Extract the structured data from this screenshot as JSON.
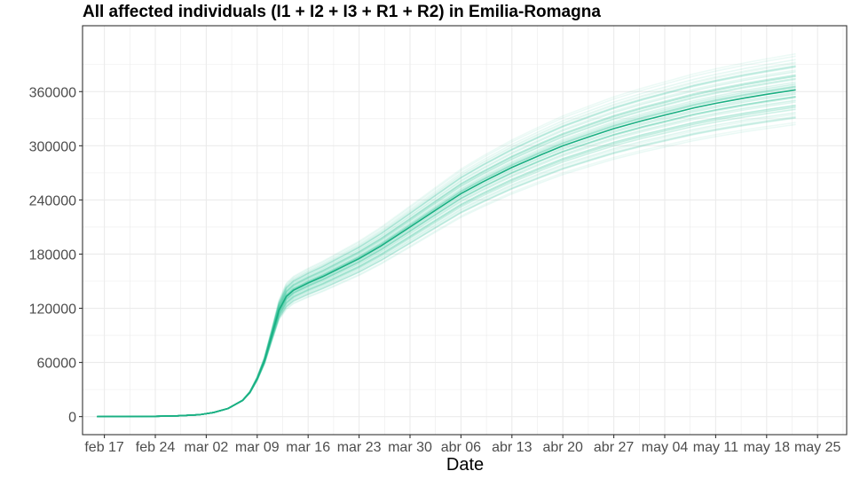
{
  "chart_data": {
    "type": "line",
    "title": "All affected individuals (I1 + I2 + I3 + R1 + R2) in  Emilia-Romagna",
    "xlabel": "Date",
    "ylabel": "",
    "x_ticks": [
      "feb 17",
      "feb 24",
      "mar 02",
      "mar 09",
      "mar 16",
      "mar 23",
      "mar 30",
      "abr 06",
      "abr 13",
      "abr 20",
      "abr 27",
      "may 04",
      "may 11",
      "may 18",
      "may 25"
    ],
    "x_tick_days": [
      0,
      7,
      14,
      21,
      28,
      35,
      42,
      49,
      56,
      63,
      70,
      77,
      84,
      91,
      98
    ],
    "xlim": [
      -3,
      102
    ],
    "y_ticks": [
      "0",
      "60000",
      "120000",
      "180000",
      "240000",
      "300000",
      "360000"
    ],
    "ylim": [
      -20000,
      433000
    ],
    "grid": true,
    "colors": {
      "main": "#1aaf82",
      "ensemble": "#33c49a",
      "grid": "#ebebeb",
      "border": "#333333"
    },
    "series": [
      {
        "role": "median",
        "x": [
          -1,
          3,
          7,
          10,
          13,
          15,
          17,
          19,
          20,
          21,
          22,
          23,
          24,
          25,
          26,
          27,
          28,
          30,
          32,
          35,
          38,
          42,
          45,
          49,
          52,
          56,
          60,
          63,
          67,
          70,
          74,
          77,
          81,
          84,
          88,
          91,
          95
        ],
        "values": [
          0,
          100,
          300,
          800,
          2000,
          4500,
          9000,
          18000,
          27000,
          42000,
          62000,
          90000,
          118000,
          133000,
          140000,
          144000,
          148000,
          155000,
          163000,
          175000,
          189000,
          210000,
          226000,
          247000,
          260000,
          276000,
          290000,
          300000,
          311000,
          319000,
          328000,
          334000,
          342000,
          347000,
          353000,
          357000,
          362000
        ]
      }
    ]
  }
}
